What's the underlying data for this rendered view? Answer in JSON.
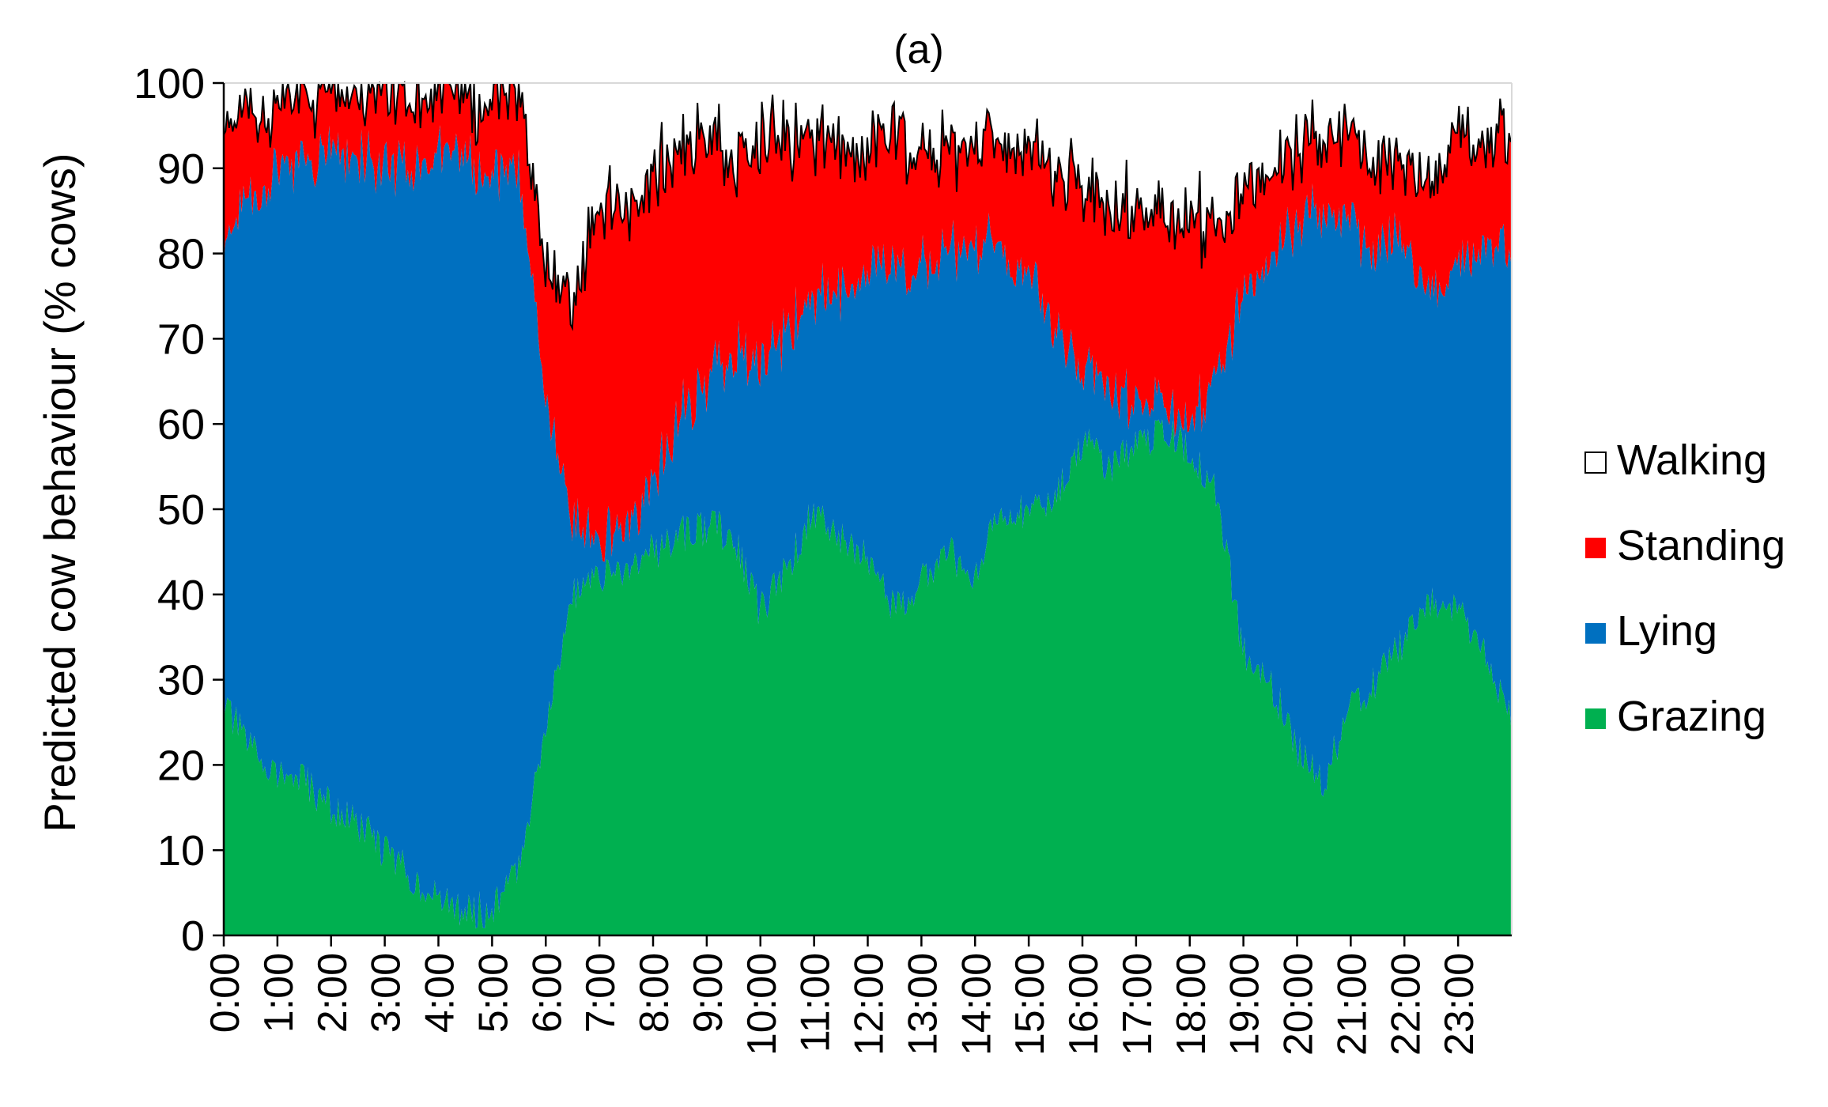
{
  "chart_data": {
    "type": "area",
    "stacked": true,
    "title": "(a)",
    "xlabel": "",
    "ylabel": "Predicted cow behaviour (% cows)",
    "ylim": [
      0,
      100
    ],
    "xlim_hours": [
      0,
      24
    ],
    "grid": false,
    "legend_position": "right",
    "y_ticks": [
      "0",
      "10",
      "20",
      "30",
      "40",
      "50",
      "60",
      "70",
      "80",
      "90",
      "100"
    ],
    "x_tick_labels": [
      "0:00",
      "1:00",
      "2:00",
      "3:00",
      "4:00",
      "5:00",
      "6:00",
      "7:00",
      "8:00",
      "9:00",
      "10:00",
      "11:00",
      "12:00",
      "13:00",
      "14:00",
      "15:00",
      "16:00",
      "17:00",
      "18:00",
      "19:00",
      "20:00",
      "21:00",
      "22:00",
      "23:00"
    ],
    "x": [
      "0:00",
      "0:30",
      "1:00",
      "1:30",
      "2:00",
      "2:30",
      "3:00",
      "3:30",
      "4:00",
      "4:30",
      "5:00",
      "5:30",
      "6:00",
      "6:30",
      "7:00",
      "7:30",
      "8:00",
      "8:30",
      "9:00",
      "9:30",
      "10:00",
      "10:30",
      "11:00",
      "11:30",
      "12:00",
      "12:30",
      "13:00",
      "13:30",
      "14:00",
      "14:30",
      "15:00",
      "15:30",
      "16:00",
      "16:30",
      "17:00",
      "17:30",
      "18:00",
      "18:30",
      "19:00",
      "19:30",
      "20:00",
      "20:30",
      "21:00",
      "21:30",
      "22:00",
      "22:30",
      "23:00",
      "23:30",
      "23:59"
    ],
    "series": [
      {
        "name": "Grazing",
        "color": "#00b050",
        "values": [
          27,
          22,
          19,
          18,
          15,
          13,
          10,
          7,
          4,
          3,
          3,
          8,
          25,
          40,
          42,
          43,
          45,
          47,
          48,
          47,
          38,
          43,
          50,
          47,
          44,
          38,
          42,
          45,
          42,
          50,
          50,
          52,
          58,
          55,
          57,
          60,
          57,
          52,
          33,
          30,
          22,
          18,
          27,
          30,
          35,
          39,
          38,
          33,
          25
        ]
      },
      {
        "name": "Lying",
        "color": "#0070c0",
        "values": [
          54,
          64,
          71,
          72,
          77,
          78,
          80,
          84,
          88,
          89,
          87,
          81,
          39,
          8,
          4,
          5,
          8,
          14,
          17,
          22,
          28,
          28,
          25,
          29,
          34,
          40,
          37,
          35,
          39,
          30,
          28,
          20,
          8,
          9,
          5,
          2,
          3,
          14,
          42,
          50,
          62,
          68,
          56,
          51,
          46,
          36,
          40,
          48,
          55
        ]
      },
      {
        "name": "Standing",
        "color": "#ff0000",
        "values": [
          14,
          10,
          7,
          8,
          7,
          7,
          9,
          8,
          7,
          7,
          9,
          10,
          15,
          26,
          40,
          37,
          36,
          31,
          29,
          22,
          27,
          22,
          19,
          17,
          14,
          16,
          14,
          12,
          12,
          13,
          15,
          19,
          21,
          21,
          23,
          22,
          24,
          18,
          12,
          10,
          10,
          8,
          10,
          10,
          9,
          13,
          16,
          12,
          14
        ]
      },
      {
        "name": "Walking",
        "color": "#ffffff",
        "values": [
          5,
          4,
          3,
          2,
          1,
          2,
          1,
          1,
          1,
          1,
          1,
          1,
          21,
          26,
          14,
          15,
          11,
          8,
          6,
          9,
          7,
          7,
          6,
          7,
          8,
          6,
          7,
          8,
          7,
          7,
          7,
          9,
          13,
          15,
          15,
          16,
          16,
          16,
          13,
          10,
          6,
          6,
          7,
          9,
          10,
          12,
          6,
          7,
          6
        ]
      }
    ]
  }
}
